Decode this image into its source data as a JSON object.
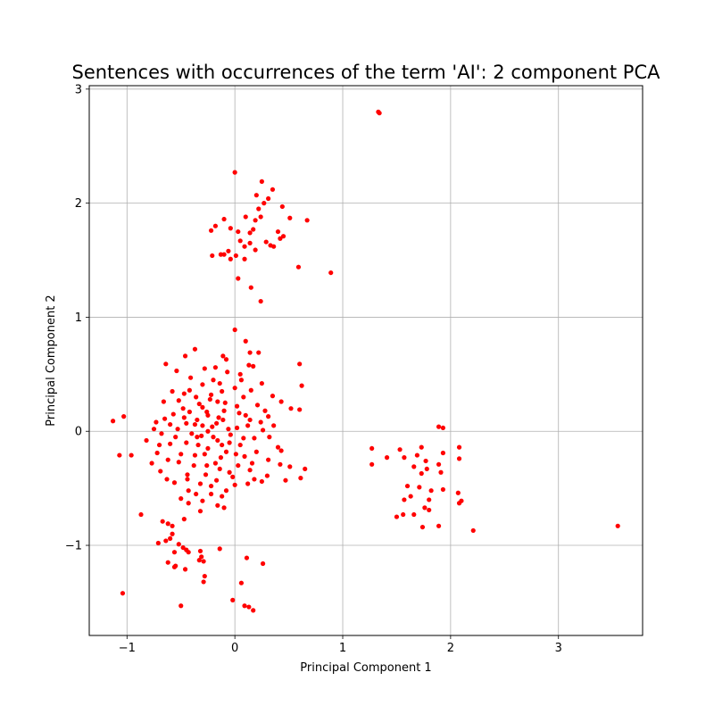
{
  "chart_data": {
    "type": "scatter",
    "title": "Sentences with occurrences of the term 'AI': 2 component PCA",
    "xlabel": "Principal Component 1",
    "ylabel": "Principal Component 2",
    "xlim": [
      -1.35,
      3.78
    ],
    "ylim": [
      -1.79,
      3.03
    ],
    "xticks": [
      -1,
      0,
      1,
      2,
      3
    ],
    "yticks": [
      -1,
      0,
      1,
      2,
      3
    ],
    "grid": true,
    "marker_color": "#ff0000",
    "series": [
      {
        "points": [
          [
            1.34,
            2.79
          ],
          [
            0.0,
            2.27
          ],
          [
            0.25,
            2.19
          ],
          [
            0.35,
            2.12
          ],
          [
            0.2,
            2.07
          ],
          [
            0.31,
            2.04
          ],
          [
            0.27,
            2.0
          ],
          [
            0.44,
            1.97
          ],
          [
            0.22,
            1.95
          ],
          [
            0.1,
            1.88
          ],
          [
            0.24,
            1.88
          ],
          [
            0.67,
            1.85
          ],
          [
            0.51,
            1.87
          ],
          [
            -0.1,
            1.86
          ],
          [
            0.19,
            1.85
          ],
          [
            -0.18,
            1.8
          ],
          [
            -0.04,
            1.78
          ],
          [
            0.17,
            1.77
          ],
          [
            0.4,
            1.75
          ],
          [
            0.03,
            1.75
          ],
          [
            -0.22,
            1.76
          ],
          [
            0.14,
            1.74
          ],
          [
            0.45,
            1.71
          ],
          [
            0.42,
            1.69
          ],
          [
            0.05,
            1.67
          ],
          [
            0.29,
            1.66
          ],
          [
            0.33,
            1.63
          ],
          [
            0.36,
            1.62
          ],
          [
            0.14,
            1.65
          ],
          [
            0.09,
            1.62
          ],
          [
            0.19,
            1.59
          ],
          [
            -0.06,
            1.58
          ],
          [
            -0.21,
            1.54
          ],
          [
            -0.13,
            1.55
          ],
          [
            -0.1,
            1.55
          ],
          [
            0.01,
            1.54
          ],
          [
            0.09,
            1.51
          ],
          [
            -0.04,
            1.51
          ],
          [
            0.59,
            1.44
          ],
          [
            0.89,
            1.39
          ],
          [
            0.03,
            1.34
          ],
          [
            0.15,
            1.26
          ],
          [
            0.24,
            1.14
          ],
          [
            0.0,
            0.89
          ],
          [
            0.1,
            0.79
          ],
          [
            -0.37,
            0.72
          ],
          [
            0.14,
            0.69
          ],
          [
            0.22,
            0.69
          ],
          [
            -0.46,
            0.66
          ],
          [
            -0.11,
            0.66
          ],
          [
            -0.08,
            0.63
          ],
          [
            -0.64,
            0.59
          ],
          [
            0.6,
            0.59
          ],
          [
            0.13,
            0.58
          ],
          [
            0.17,
            0.57
          ],
          [
            -0.18,
            0.56
          ],
          [
            -0.54,
            0.53
          ],
          [
            -0.28,
            0.55
          ],
          [
            -0.07,
            0.52
          ],
          [
            0.05,
            0.5
          ],
          [
            -0.41,
            0.47
          ],
          [
            0.25,
            0.42
          ],
          [
            0.62,
            0.4
          ],
          [
            -0.3,
            0.41
          ],
          [
            -0.14,
            0.42
          ],
          [
            0.0,
            0.38
          ],
          [
            0.15,
            0.36
          ],
          [
            -0.47,
            0.33
          ],
          [
            -0.22,
            0.32
          ],
          [
            0.35,
            0.31
          ],
          [
            -0.36,
            0.3
          ],
          [
            0.08,
            0.3
          ],
          [
            -0.52,
            0.27
          ],
          [
            0.43,
            0.26
          ],
          [
            -0.66,
            0.26
          ],
          [
            -0.09,
            0.25
          ],
          [
            0.21,
            0.23
          ],
          [
            -0.3,
            0.21
          ],
          [
            0.52,
            0.2
          ],
          [
            0.6,
            0.19
          ],
          [
            -0.42,
            0.17
          ],
          [
            0.04,
            0.16
          ],
          [
            -0.57,
            0.15
          ],
          [
            -0.25,
            0.14
          ],
          [
            0.31,
            0.13
          ],
          [
            -0.65,
            0.11
          ],
          [
            -0.11,
            0.1
          ],
          [
            0.14,
            0.1
          ],
          [
            -1.13,
            0.09
          ],
          [
            -1.03,
            0.13
          ],
          [
            -0.73,
            0.08
          ],
          [
            -0.37,
            0.06
          ],
          [
            0.36,
            0.05
          ],
          [
            -0.21,
            0.04
          ],
          [
            0.02,
            0.03
          ],
          [
            -0.53,
            0.02
          ],
          [
            0.26,
            0.01
          ],
          [
            -0.68,
            -0.02
          ],
          [
            -0.04,
            -0.03
          ],
          [
            -0.35,
            -0.05
          ],
          [
            0.18,
            -0.06
          ],
          [
            -0.82,
            -0.08
          ],
          [
            -0.16,
            -0.08
          ],
          [
            -0.45,
            -0.1
          ],
          [
            -0.6,
            -0.11
          ],
          [
            0.05,
            -0.12
          ],
          [
            0.4,
            -0.14
          ],
          [
            -0.25,
            -0.15
          ],
          [
            0.43,
            -0.17
          ],
          [
            -0.72,
            -0.19
          ],
          [
            -0.37,
            -0.21
          ],
          [
            -1.07,
            -0.21
          ],
          [
            -0.96,
            -0.21
          ],
          [
            0.09,
            -0.22
          ],
          [
            -0.13,
            -0.23
          ],
          [
            0.31,
            -0.25
          ],
          [
            -0.52,
            -0.27
          ],
          [
            -0.77,
            -0.28
          ],
          [
            0.42,
            -0.29
          ],
          [
            -0.26,
            -0.3
          ],
          [
            0.51,
            -0.31
          ],
          [
            0.65,
            -0.33
          ],
          [
            -0.69,
            -0.35
          ],
          [
            0.14,
            -0.34
          ],
          [
            -0.05,
            -0.36
          ],
          [
            -0.44,
            -0.38
          ],
          [
            0.3,
            -0.39
          ],
          [
            0.61,
            -0.41
          ],
          [
            -0.63,
            -0.42
          ],
          [
            0.18,
            -0.42
          ],
          [
            0.47,
            -0.43
          ],
          [
            -0.17,
            -0.43
          ],
          [
            0.25,
            -0.44
          ],
          [
            -0.56,
            -0.45
          ],
          [
            -0.32,
            -0.46
          ],
          [
            0.0,
            -0.47
          ],
          [
            -0.43,
            -0.52
          ],
          [
            -0.22,
            -0.55
          ],
          [
            -0.12,
            -0.57
          ],
          [
            -0.5,
            -0.59
          ],
          [
            -0.3,
            -0.61
          ],
          [
            -0.43,
            -0.63
          ],
          [
            -0.16,
            -0.65
          ],
          [
            -0.1,
            -0.67
          ],
          [
            -0.32,
            -0.7
          ],
          [
            -0.87,
            -0.73
          ],
          [
            -0.47,
            -0.77
          ],
          [
            -0.67,
            -0.79
          ],
          [
            -0.62,
            -0.81
          ],
          [
            -0.58,
            -0.83
          ],
          [
            -0.58,
            -0.9
          ],
          [
            -0.6,
            -0.94
          ],
          [
            -0.64,
            -0.96
          ],
          [
            -0.71,
            -0.98
          ],
          [
            -0.52,
            -0.99
          ],
          [
            -0.48,
            -1.02
          ],
          [
            -0.45,
            -1.04
          ],
          [
            -0.43,
            -1.06
          ],
          [
            -0.32,
            -1.05
          ],
          [
            -0.56,
            -1.06
          ],
          [
            -0.14,
            -1.03
          ],
          [
            -0.31,
            -1.1
          ],
          [
            -0.33,
            -1.13
          ],
          [
            -0.29,
            -1.14
          ],
          [
            0.11,
            -1.11
          ],
          [
            -0.62,
            -1.15
          ],
          [
            -0.55,
            -1.18
          ],
          [
            -0.56,
            -1.19
          ],
          [
            0.26,
            -1.16
          ],
          [
            -0.46,
            -1.21
          ],
          [
            -0.28,
            -1.27
          ],
          [
            -0.29,
            -1.32
          ],
          [
            0.06,
            -1.33
          ],
          [
            -0.02,
            -1.48
          ],
          [
            -0.5,
            -1.53
          ],
          [
            0.09,
            -1.53
          ],
          [
            0.13,
            -1.54
          ],
          [
            0.17,
            -1.57
          ],
          [
            -1.04,
            -1.42
          ],
          [
            -0.35,
            0.1
          ],
          [
            -0.3,
            0.05
          ],
          [
            -0.25,
            0.0
          ],
          [
            -0.2,
            -0.05
          ],
          [
            -0.15,
            0.12
          ],
          [
            -0.1,
            0.18
          ],
          [
            -0.05,
            -0.1
          ],
          [
            -0.4,
            -0.02
          ],
          [
            -0.45,
            0.07
          ],
          [
            -0.28,
            -0.2
          ],
          [
            -0.18,
            -0.28
          ],
          [
            -0.08,
            -0.18
          ],
          [
            0.02,
            0.22
          ],
          [
            0.08,
            -0.06
          ],
          [
            0.12,
            0.05
          ],
          [
            -0.33,
            0.24
          ],
          [
            -0.23,
            0.28
          ],
          [
            -0.12,
            0.35
          ],
          [
            -0.48,
            0.2
          ],
          [
            -0.55,
            -0.05
          ],
          [
            -0.6,
            0.06
          ],
          [
            -0.38,
            -0.3
          ],
          [
            -0.27,
            -0.38
          ],
          [
            -0.14,
            -0.33
          ],
          [
            0.03,
            -0.3
          ],
          [
            0.2,
            -0.18
          ],
          [
            0.24,
            0.08
          ],
          [
            -0.42,
            0.36
          ],
          [
            -0.2,
            0.45
          ],
          [
            0.06,
            0.45
          ],
          [
            -0.5,
            -0.2
          ],
          [
            -0.62,
            -0.25
          ],
          [
            -0.34,
            -0.12
          ],
          [
            -0.17,
            0.07
          ],
          [
            0.1,
            0.14
          ],
          [
            -0.06,
            0.02
          ],
          [
            -0.26,
            0.17
          ],
          [
            -0.44,
            -0.42
          ],
          [
            -0.22,
            -0.48
          ],
          [
            -0.02,
            -0.4
          ],
          [
            0.16,
            -0.28
          ],
          [
            0.32,
            -0.05
          ],
          [
            0.28,
            0.18
          ],
          [
            -0.58,
            0.35
          ],
          [
            -0.7,
            -0.12
          ],
          [
            -0.75,
            0.02
          ],
          [
            -0.36,
            -0.55
          ],
          [
            -0.08,
            -0.52
          ],
          [
            0.12,
            -0.46
          ],
          [
            -0.16,
            0.26
          ],
          [
            -0.31,
            -0.04
          ],
          [
            -0.12,
            -0.12
          ],
          [
            0.01,
            -0.2
          ],
          [
            -0.47,
            0.12
          ],
          [
            1.33,
            2.8
          ],
          [
            1.27,
            -0.15
          ],
          [
            1.53,
            -0.16
          ],
          [
            1.73,
            -0.14
          ],
          [
            2.08,
            -0.14
          ],
          [
            1.27,
            -0.29
          ],
          [
            1.41,
            -0.23
          ],
          [
            1.57,
            -0.23
          ],
          [
            1.69,
            -0.21
          ],
          [
            1.93,
            -0.19
          ],
          [
            2.08,
            -0.24
          ],
          [
            1.66,
            -0.31
          ],
          [
            1.77,
            -0.26
          ],
          [
            1.89,
            -0.29
          ],
          [
            1.73,
            -0.37
          ],
          [
            1.78,
            -0.33
          ],
          [
            1.91,
            -0.36
          ],
          [
            1.6,
            -0.48
          ],
          [
            1.71,
            -0.49
          ],
          [
            1.82,
            -0.52
          ],
          [
            1.93,
            -0.51
          ],
          [
            2.07,
            -0.54
          ],
          [
            1.57,
            -0.6
          ],
          [
            1.63,
            -0.57
          ],
          [
            1.8,
            -0.6
          ],
          [
            2.1,
            -0.61
          ],
          [
            1.76,
            -0.67
          ],
          [
            1.8,
            -0.69
          ],
          [
            2.08,
            -0.63
          ],
          [
            1.5,
            -0.75
          ],
          [
            1.56,
            -0.73
          ],
          [
            1.66,
            -0.73
          ],
          [
            1.74,
            -0.84
          ],
          [
            1.89,
            -0.83
          ],
          [
            2.21,
            -0.87
          ],
          [
            1.89,
            0.04
          ],
          [
            1.93,
            0.03
          ],
          [
            3.55,
            -0.83
          ]
        ]
      }
    ]
  }
}
